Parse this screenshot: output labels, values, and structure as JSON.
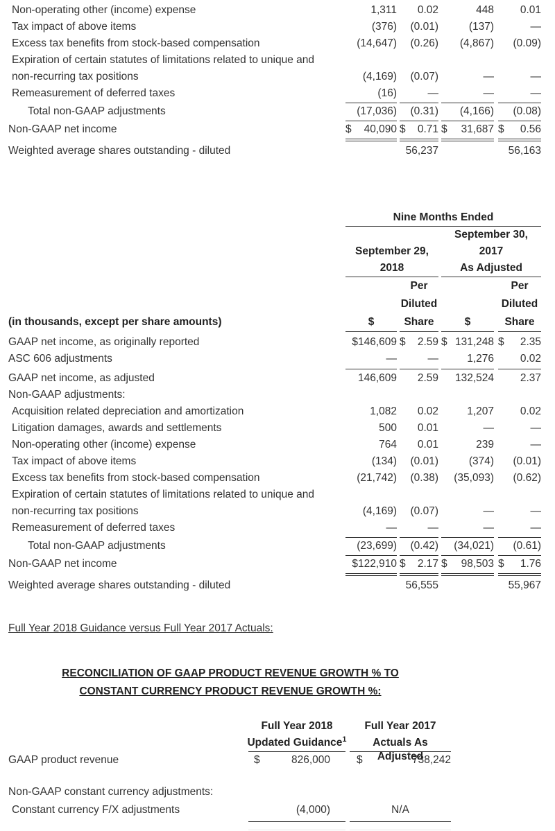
{
  "top_table": {
    "rows": [
      {
        "label": "Non-operating other (income) expense",
        "values": [
          "1,311",
          "0.02",
          "448",
          "0.01"
        ]
      },
      {
        "label": "Tax impact of above items",
        "values": [
          "(376)",
          "(0.01)",
          "(137)",
          "—"
        ]
      },
      {
        "label": "Excess tax benefits from stock-based compensation",
        "values": [
          "(14,647)",
          "(0.26)",
          "(4,867)",
          "(0.09)"
        ]
      },
      {
        "label": "Expiration of certain statutes of limitations related to unique and",
        "values": [
          "",
          "",
          "",
          ""
        ]
      },
      {
        "label": "non-recurring tax positions",
        "values": [
          "(4,169)",
          "(0.07)",
          "—",
          "—"
        ]
      },
      {
        "label": "Remeasurement of deferred taxes",
        "values": [
          "(16)",
          "—",
          "—",
          "—"
        ]
      },
      {
        "label": "Total non-GAAP adjustments",
        "values": [
          "(17,036)",
          "(0.31)",
          "(4,166)",
          "(0.08)"
        ]
      },
      {
        "label": "Non-GAAP net income",
        "values": [
          "$ 40,090",
          "$ 0.71",
          "$ 31,687",
          "$ 0.56"
        ]
      },
      {
        "label": "Weighted average shares outstanding - diluted",
        "values": [
          "",
          "56,237",
          "",
          "56,163"
        ]
      }
    ]
  },
  "nine_months_table": {
    "period_header": "Nine Months Ended",
    "col_2018_line1": "September 29,",
    "col_2018_line2": "2018",
    "col_2017_line1": "September 30,",
    "col_2017_line2": "2017",
    "col_2017_line3": "As Adjusted",
    "per_line1": "Per",
    "per_line2": "Diluted",
    "per_line3": "Share",
    "dollar_header": "$",
    "units_label": "(in thousands, except per share amounts)",
    "rows": [
      {
        "label": "GAAP net income, as originally reported",
        "values": [
          "$146,609",
          "$ 2.59",
          "$ 131,248",
          "$ 2.35"
        ]
      },
      {
        "label": "ASC 606 adjustments",
        "values": [
          "—",
          "—",
          "1,276",
          "0.02"
        ]
      },
      {
        "label": "GAAP net income, as adjusted",
        "values": [
          "146,609",
          "2.59",
          "132,524",
          "2.37"
        ]
      },
      {
        "label": "Non-GAAP adjustments:",
        "values": [
          "",
          "",
          "",
          ""
        ]
      },
      {
        "label": "Acquisition related depreciation and amortization",
        "values": [
          "1,082",
          "0.02",
          "1,207",
          "0.02"
        ]
      },
      {
        "label": "Litigation damages, awards and settlements",
        "values": [
          "500",
          "0.01",
          "—",
          "—"
        ]
      },
      {
        "label": "Non-operating other (income) expense",
        "values": [
          "764",
          "0.01",
          "239",
          "—"
        ]
      },
      {
        "label": "Tax impact of above items",
        "values": [
          "(134)",
          "(0.01)",
          "(374)",
          "(0.01)"
        ]
      },
      {
        "label": "Excess tax benefits from stock-based compensation",
        "values": [
          "(21,742)",
          "(0.38)",
          "(35,093)",
          "(0.62)"
        ]
      },
      {
        "label": "Expiration of certain statutes of limitations related to unique and",
        "values": [
          "",
          "",
          "",
          ""
        ]
      },
      {
        "label": "non-recurring tax positions",
        "values": [
          "(4,169)",
          "(0.07)",
          "—",
          "—"
        ]
      },
      {
        "label": "Remeasurement of deferred taxes",
        "values": [
          "—",
          "—",
          "—",
          "—"
        ]
      },
      {
        "label": "Total non-GAAP adjustments",
        "values": [
          "(23,699)",
          "(0.42)",
          "(34,021)",
          "(0.61)"
        ]
      },
      {
        "label": "Non-GAAP net income",
        "values": [
          "$122,910",
          "$ 2.17",
          "$ 98,503",
          "$ 1.76"
        ]
      },
      {
        "label": "Weighted average shares outstanding - diluted",
        "values": [
          "",
          "56,555",
          "",
          "55,967"
        ]
      }
    ]
  },
  "guidance": {
    "section_title": "Full Year 2018 Guidance versus Full Year 2017 Actuals:",
    "recon_title_line1": "RECONCILIATION OF GAAP PRODUCT REVENUE GROWTH % TO",
    "recon_title_line2": "CONSTANT CURRENCY PRODUCT REVENUE GROWTH %:",
    "col_a_line1": "Full Year 2018",
    "col_a_line2": "Updated Guidance",
    "col_a_footnote": "1",
    "col_b_line1": "Full Year 2017",
    "col_b_line2": "Actuals As Adjusted",
    "rows": [
      {
        "label": "GAAP product revenue",
        "values": [
          "$ 826,000",
          "$ 738,242"
        ]
      },
      {
        "label": "Non-GAAP constant currency adjustments:",
        "values": [
          "",
          ""
        ]
      },
      {
        "label": "Constant currency F/X adjustments",
        "values": [
          "(4,000)",
          "N/A"
        ]
      }
    ]
  }
}
